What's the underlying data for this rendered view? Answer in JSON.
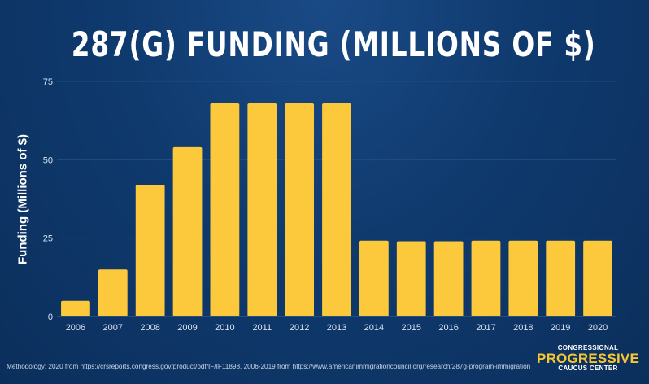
{
  "chart_data": {
    "type": "bar",
    "title": "287(G) FUNDING (MILLIONS OF $)",
    "xlabel": "",
    "ylabel": "Funding (Millions of $)",
    "categories": [
      "2006",
      "2007",
      "2008",
      "2009",
      "2010",
      "2011",
      "2012",
      "2013",
      "2014",
      "2015",
      "2016",
      "2017",
      "2018",
      "2019",
      "2020"
    ],
    "values": [
      5,
      15,
      42,
      54,
      68,
      68,
      68,
      68,
      24.2,
      24,
      24,
      24.2,
      24.2,
      24.2,
      24.2
    ],
    "ylim": [
      0,
      75
    ],
    "yticks": [
      0,
      25,
      50,
      75
    ],
    "grid": true,
    "bar_color": "#fbc93b"
  },
  "footnote": "Methodology: 2020 from https://crsreports.congress.gov/product/pdf/IF/IF11898, 2006-2019 from https://www.americanimmigrationcouncil.org/research/287g-program-immigration",
  "logo": {
    "line1": "CONGRESSIONAL",
    "line2": "PROGRESSIVE",
    "line3": "CAUCUS CENTER"
  }
}
